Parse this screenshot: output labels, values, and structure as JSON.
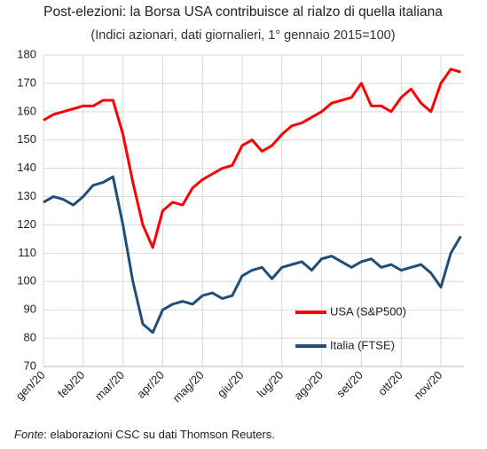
{
  "chart_data": {
    "type": "line",
    "title": "Post-elezioni: la Borsa USA contribuisce al rialzo di quella italiana",
    "subtitle": "(Indici azionari, dati giornalieri, 1° gennaio 2015=100)",
    "source_label": "Fonte",
    "source_text": ": elaborazioni CSC su dati Thomson Reuters.",
    "categories": [
      "gen/20",
      null,
      null,
      null,
      "feb/20",
      null,
      null,
      null,
      "mar/20",
      null,
      null,
      null,
      "apr/20",
      null,
      null,
      null,
      "mag/20",
      null,
      null,
      null,
      "giu/20",
      null,
      null,
      null,
      "lug/20",
      null,
      null,
      null,
      "ago/20",
      null,
      null,
      null,
      "set/20",
      null,
      null,
      null,
      "ott/20",
      null,
      null,
      null,
      "nov/20",
      null,
      null
    ],
    "series": [
      {
        "name": "USA (S&P500)",
        "color": "#ff0000",
        "values": [
          157,
          159,
          160,
          161,
          162,
          162,
          164,
          164,
          152,
          135,
          120,
          112,
          125,
          128,
          127,
          133,
          136,
          138,
          140,
          141,
          148,
          150,
          146,
          148,
          152,
          155,
          156,
          158,
          160,
          163,
          164,
          165,
          170,
          162,
          162,
          160,
          165,
          168,
          163,
          160,
          170,
          175,
          174
        ]
      },
      {
        "name": "Italia (FTSE)",
        "color": "#1f4e79",
        "values": [
          128,
          130,
          129,
          127,
          130,
          134,
          135,
          137,
          120,
          100,
          85,
          82,
          90,
          92,
          93,
          92,
          95,
          96,
          94,
          95,
          102,
          104,
          105,
          101,
          105,
          106,
          107,
          104,
          108,
          109,
          107,
          105,
          107,
          108,
          105,
          106,
          104,
          105,
          106,
          103,
          98,
          110,
          116
        ]
      }
    ],
    "ylim": [
      70,
      180
    ],
    "yticks": [
      70,
      80,
      90,
      100,
      110,
      120,
      130,
      140,
      150,
      160,
      170,
      180
    ],
    "grid": true
  }
}
